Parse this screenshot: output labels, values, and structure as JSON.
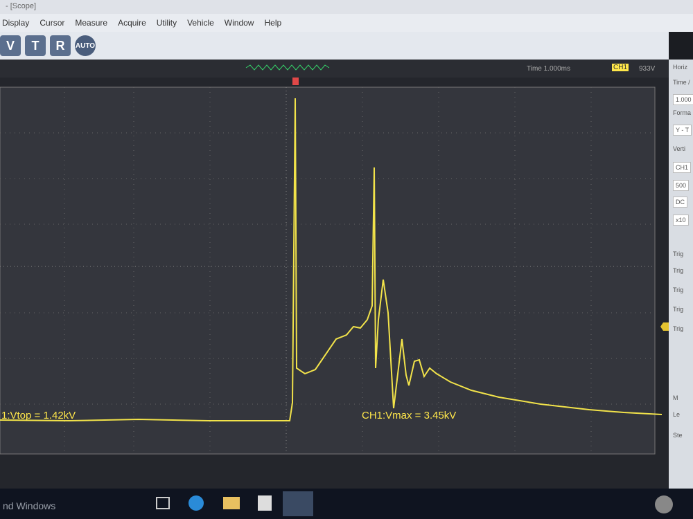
{
  "window": {
    "title": "- [Scope]"
  },
  "menu": [
    "Display",
    "Cursor",
    "Measure",
    "Acquire",
    "Utility",
    "Vehicle",
    "Window",
    "Help"
  ],
  "toolbar": [
    "V",
    "T",
    "R",
    "AUTO"
  ],
  "status": {
    "timebase": "Time 1.000ms",
    "channel": "CH1",
    "trigger_level": "933V"
  },
  "measurements": [
    "1:Vtop = 1.42kV",
    "CH1:Vmax = 3.45kV"
  ],
  "panel": [
    "Horiz",
    "Time /",
    "1.000",
    "Forma",
    "Y - T",
    "Verti",
    "CH1",
    "500",
    "DC",
    "x10",
    "Trig",
    "Trig",
    "Trig",
    "Trig",
    "Trig",
    "M",
    "Le",
    "Ste"
  ],
  "taskbar": {
    "activation": "nd Windows"
  }
}
